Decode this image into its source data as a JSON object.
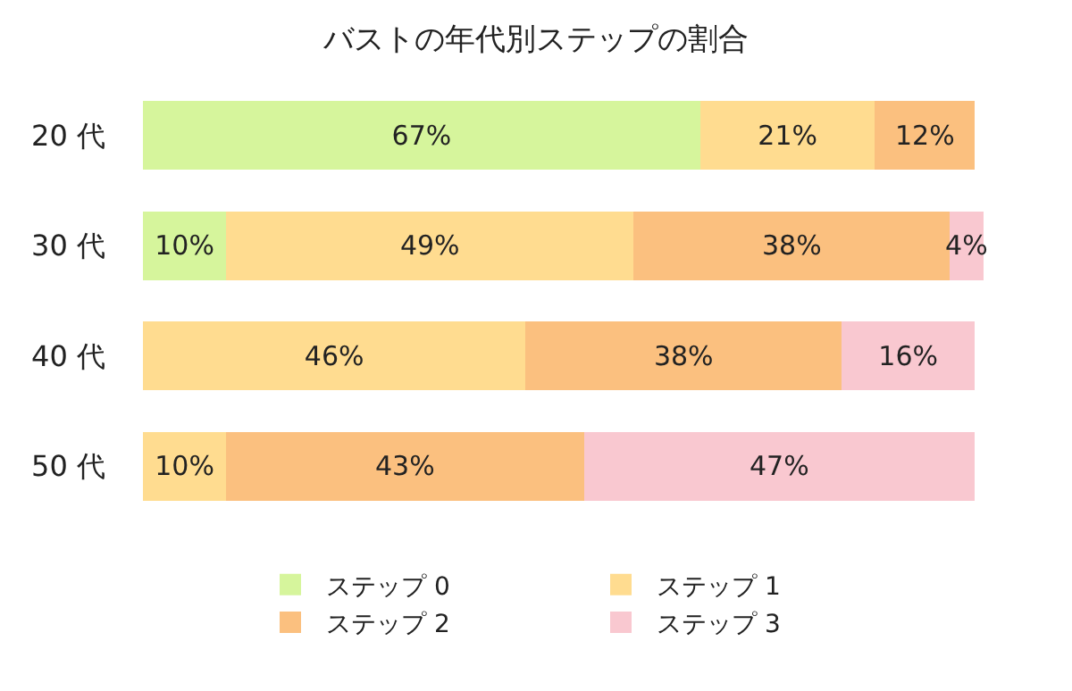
{
  "chart_data": {
    "type": "bar",
    "title": "バストの年代別ステップの割合",
    "orientation": "horizontal",
    "stacked": true,
    "categories": [
      "20 代",
      "30 代",
      "40 代",
      "50 代"
    ],
    "series": [
      {
        "name": "ステップ 0",
        "color": "#d6f59c",
        "values": [
          67,
          10,
          null,
          null
        ],
        "value_labels": [
          "67%",
          "10%",
          null,
          null
        ]
      },
      {
        "name": "ステップ 1",
        "color": "#ffdc90",
        "values": [
          21,
          49,
          46,
          10
        ],
        "value_labels": [
          "21%",
          "49%",
          "46%",
          "10%"
        ]
      },
      {
        "name": "ステップ 2",
        "color": "#fbc07f",
        "values": [
          12,
          38,
          38,
          43
        ],
        "value_labels": [
          "12%",
          "38%",
          "38%",
          "43%"
        ]
      },
      {
        "name": "ステップ 3",
        "color": "#f9c8d0",
        "values": [
          null,
          4,
          16,
          47
        ],
        "value_labels": [
          null,
          "4%",
          "16%",
          "47%"
        ]
      }
    ],
    "tick_labels": "y",
    "legend": "bottom"
  }
}
